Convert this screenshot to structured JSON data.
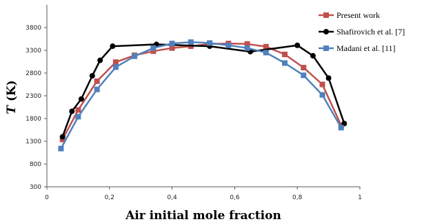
{
  "chart_data": {
    "type": "line",
    "xlabel": "Air initial mole fraction",
    "ylabel_symbol": "T",
    "ylabel_unit": " (K)",
    "xlim": [
      0,
      1
    ],
    "ylim": [
      300,
      4300
    ],
    "xticks": [
      0,
      0.2,
      0.4,
      0.6,
      0.8,
      1
    ],
    "xtick_labels": [
      "0",
      "0,2",
      "0,4",
      "0,6",
      "0,8",
      "1"
    ],
    "yticks": [
      300,
      800,
      1300,
      1800,
      2300,
      2800,
      3300,
      3800
    ],
    "ytick_labels": [
      "300",
      "800",
      "1300",
      "1800",
      "2300",
      "2800",
      "3300",
      "3800"
    ],
    "grid": false,
    "legend_position": "top-right",
    "series": [
      {
        "name": "Present work",
        "color": "#c0504d",
        "marker": "square",
        "x": [
          0.05,
          0.1,
          0.16,
          0.22,
          0.28,
          0.34,
          0.4,
          0.46,
          0.52,
          0.58,
          0.64,
          0.7,
          0.76,
          0.82,
          0.88,
          0.94
        ],
        "y": [
          1340,
          1990,
          2620,
          3040,
          3190,
          3280,
          3350,
          3390,
          3440,
          3450,
          3440,
          3380,
          3210,
          2920,
          2550,
          1650
        ]
      },
      {
        "name": "Shafirovich et al. [7]",
        "color": "#000000",
        "marker": "circle",
        "x": [
          0.05,
          0.08,
          0.11,
          0.145,
          0.17,
          0.21,
          0.35,
          0.52,
          0.65,
          0.8,
          0.85,
          0.9,
          0.95
        ],
        "y": [
          1400,
          1960,
          2230,
          2740,
          3080,
          3390,
          3430,
          3390,
          3270,
          3410,
          3180,
          2690,
          1690
        ]
      },
      {
        "name": "Madani et al. [11]",
        "color": "#4f81bd",
        "marker": "square",
        "x": [
          0.045,
          0.1,
          0.16,
          0.22,
          0.28,
          0.34,
          0.4,
          0.46,
          0.52,
          0.58,
          0.64,
          0.7,
          0.76,
          0.82,
          0.88,
          0.94
        ],
        "y": [
          1140,
          1840,
          2440,
          2930,
          3170,
          3350,
          3450,
          3480,
          3460,
          3410,
          3350,
          3250,
          3020,
          2750,
          2320,
          1600
        ]
      }
    ]
  }
}
